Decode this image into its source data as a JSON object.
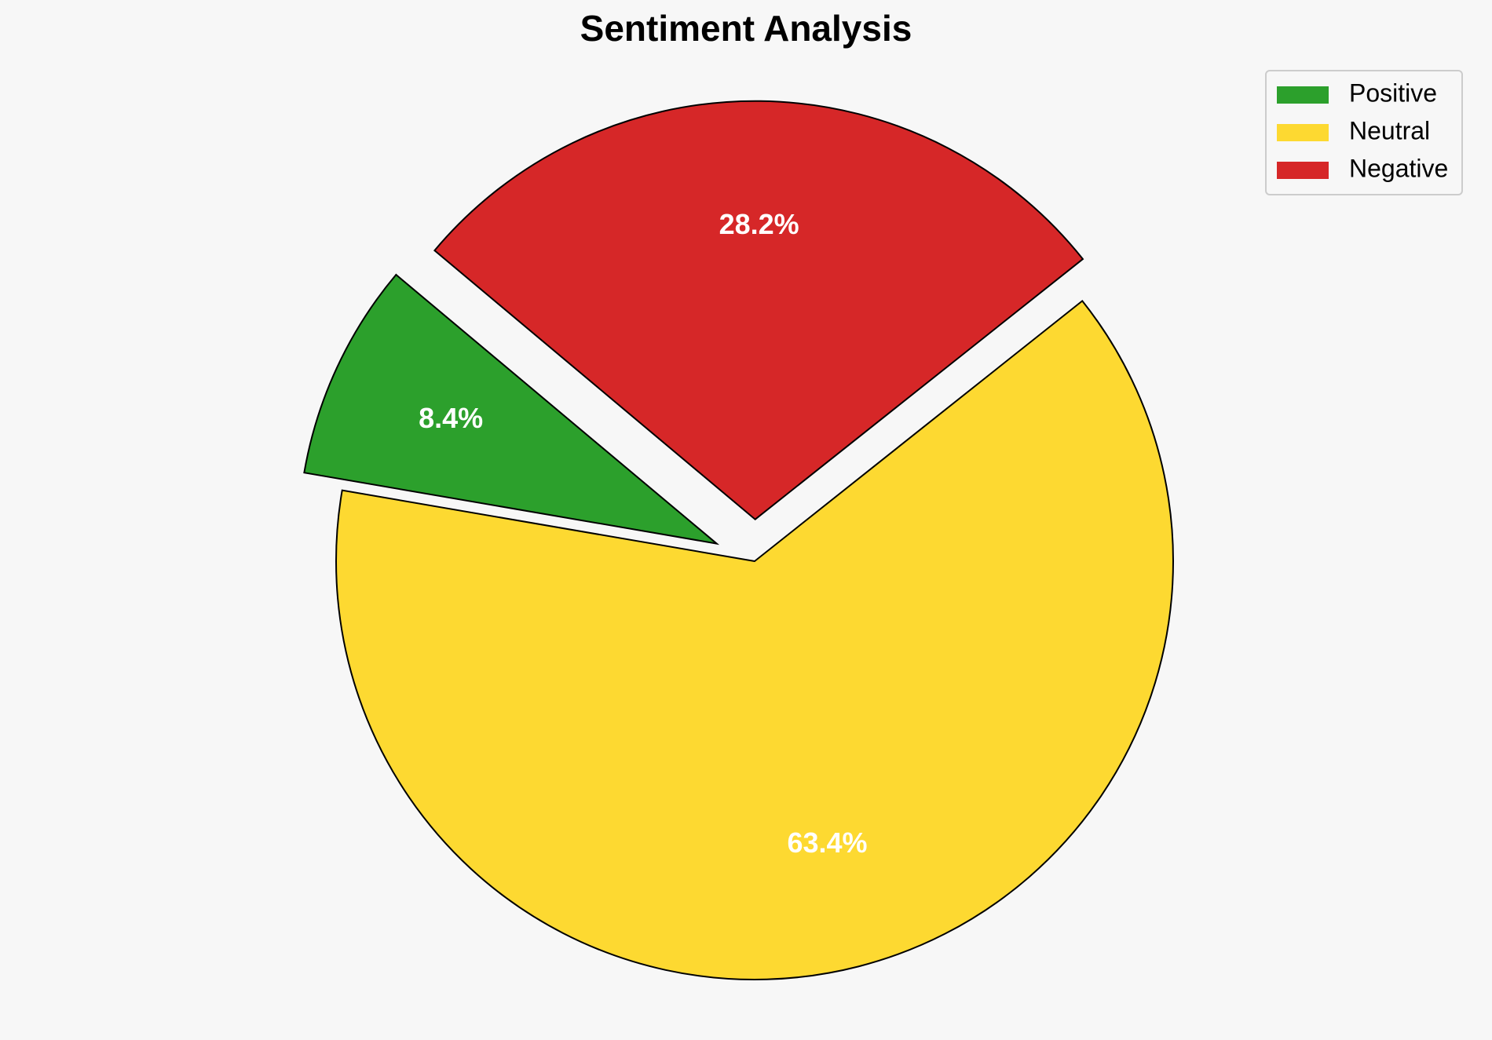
{
  "chart_data": {
    "type": "pie",
    "title": "Sentiment Analysis",
    "categories": [
      "Positive",
      "Neutral",
      "Negative"
    ],
    "values": [
      8.4,
      63.4,
      28.2
    ],
    "value_labels": [
      "8.4%",
      "63.4%",
      "28.2%"
    ],
    "colors": [
      "#2ca02c",
      "#fdd931",
      "#d62728"
    ],
    "legend": "upper right"
  }
}
